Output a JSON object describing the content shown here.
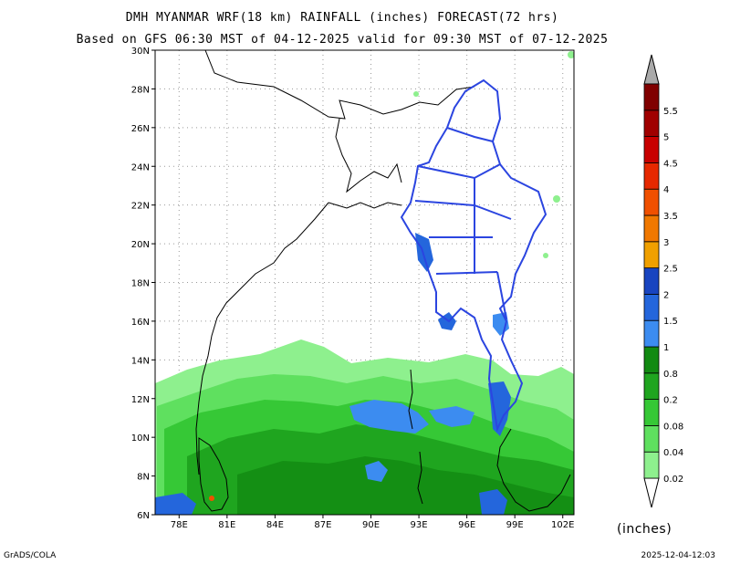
{
  "header": {
    "title": "DMH MYANMAR WRF(18 km) RAINFALL (inches) FORECAST(72 hrs)",
    "subtitle": "Based on GFS 06:30 MST of 04-12-2025 valid for 09:30 MST of 07-12-2025"
  },
  "map": {
    "lon_ticks": [
      "78E",
      "81E",
      "84E",
      "87E",
      "90E",
      "93E",
      "96E",
      "99E",
      "102E"
    ],
    "lat_ticks": [
      "6N",
      "8N",
      "10N",
      "12N",
      "14N",
      "16N",
      "18N",
      "20N",
      "22N",
      "24N",
      "26N",
      "28N",
      "30N"
    ],
    "lon_range": [
      76.5,
      102.7
    ],
    "lat_range": [
      6,
      30
    ],
    "grid": true,
    "colors": {
      "boundary": "#000000",
      "myanmar_boundary": "#2b45e0"
    }
  },
  "colorbar": {
    "unit": "(inches)",
    "levels": [
      "0.02",
      "0.04",
      "0.08",
      "0.2",
      "0.8",
      "1",
      "1.5",
      "2",
      "2.5",
      "3",
      "3.5",
      "4",
      "4.5",
      "5",
      "5.5"
    ],
    "colors": [
      "#8ef08e",
      "#5fe05f",
      "#36c836",
      "#1fa51f",
      "#118a11",
      "#3c8cf0",
      "#2466dc",
      "#1844c0",
      "#f0a000",
      "#f07800",
      "#f05000",
      "#e62800",
      "#c80000",
      "#a00000",
      "#800000"
    ]
  },
  "footer": {
    "left": "GrADS/COLA",
    "right": "2025-12-04-12:03"
  }
}
